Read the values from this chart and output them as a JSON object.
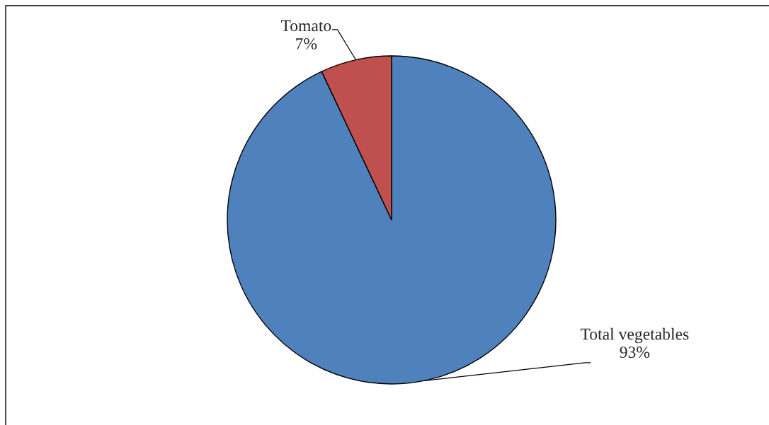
{
  "chart_data": {
    "type": "pie",
    "categories": [
      "Total vegetables",
      "Tomato"
    ],
    "values": [
      93,
      7
    ],
    "value_labels": [
      "93%",
      "7%"
    ],
    "colors": [
      "#4f81bd",
      "#c0504d"
    ],
    "legend": false
  }
}
